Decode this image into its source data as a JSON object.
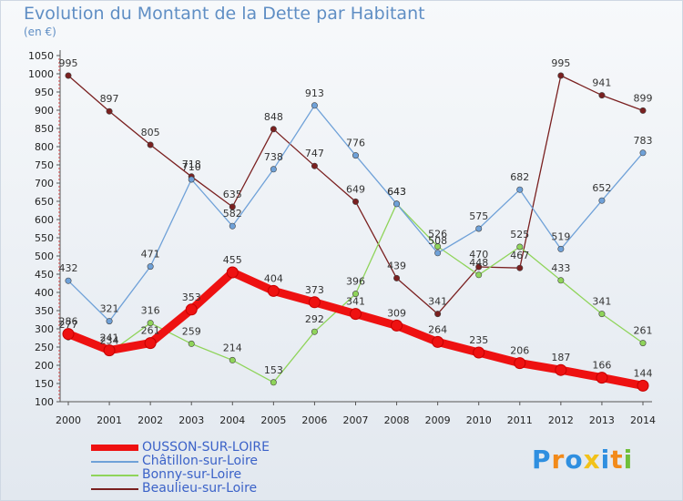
{
  "chart_data": {
    "type": "line",
    "title": "Evolution du Montant de la Dette par Habitant",
    "subtitle": "(en €)",
    "xlabel": "",
    "ylabel": "",
    "x": [
      "2000",
      "2001",
      "2002",
      "2003",
      "2004",
      "2005",
      "2006",
      "2007",
      "2008",
      "2009",
      "2010",
      "2011",
      "2012",
      "2013",
      "2014"
    ],
    "yticks": [
      100,
      150,
      200,
      250,
      300,
      350,
      400,
      450,
      500,
      550,
      600,
      650,
      700,
      750,
      800,
      850,
      900,
      950,
      1000,
      1050
    ],
    "ylim": [
      100,
      1050
    ],
    "grid": false,
    "legend_position": "bottom-left",
    "series": [
      {
        "name": "OUSSON-SUR-LOIRE",
        "color": "#ee1111",
        "values": [
          286,
          241,
          261,
          353,
          455,
          404,
          373,
          341,
          309,
          264,
          235,
          206,
          187,
          166,
          144
        ]
      },
      {
        "name": "Châtillon-sur-Loire",
        "color": "#6fa1d8",
        "values": [
          432,
          321,
          471,
          710,
          582,
          738,
          913,
          776,
          643,
          508,
          575,
          682,
          519,
          652,
          783
        ]
      },
      {
        "name": "Bonny-sur-Loire",
        "color": "#8fd45a",
        "values": [
          277,
          234,
          316,
          259,
          214,
          153,
          292,
          396,
          643,
          526,
          448,
          525,
          433,
          341,
          261
        ]
      },
      {
        "name": "Beaulieu-sur-Loire",
        "color": "#7a2020",
        "values": [
          995,
          897,
          805,
          718,
          635,
          848,
          747,
          649,
          439,
          341,
          470,
          467,
          995,
          941,
          899
        ]
      }
    ]
  },
  "logo": {
    "letters": [
      "P",
      "r",
      "o",
      "x",
      "i",
      "t",
      "i"
    ],
    "colors": [
      "#2f8fe0",
      "#f28a1a",
      "#2f8fe0",
      "#f2c21a",
      "#2f8fe0",
      "#f28a1a",
      "#6fbf3a"
    ]
  }
}
